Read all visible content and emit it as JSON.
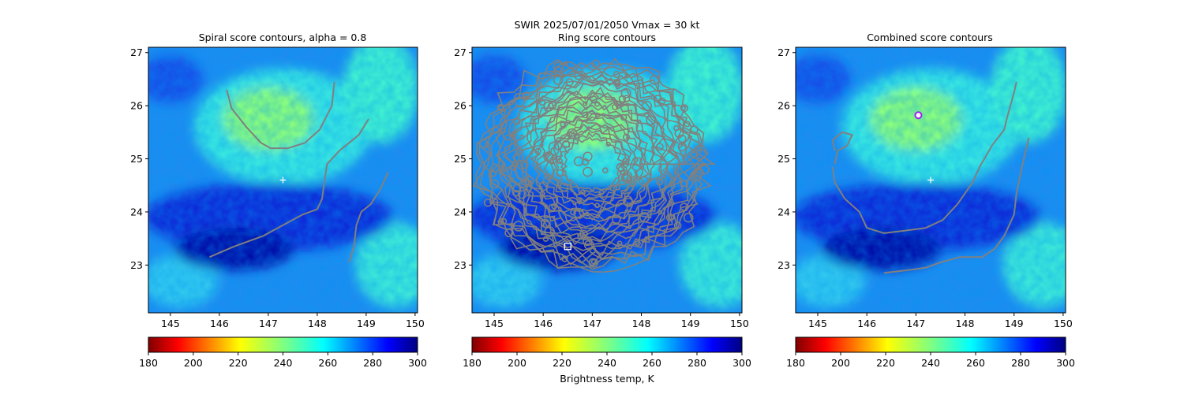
{
  "figure": {
    "suptitle_line1": "SWIR  2025/07/01/2050    Vmax = 30 kt",
    "colorbar_label": "Brightness temp, K"
  },
  "chart_data": [
    {
      "type": "heatmap",
      "title": "Spiral score contours, alpha =  0.8",
      "xlabel": "",
      "ylabel": "",
      "xlim": [
        144.55,
        150.05
      ],
      "ylim": [
        22.1,
        27.1
      ],
      "xticks": [
        145,
        146,
        147,
        148,
        149,
        150
      ],
      "yticks": [
        23,
        24,
        25,
        26,
        27
      ],
      "colorbar": {
        "ticks": [
          180,
          200,
          220,
          240,
          260,
          280,
          300
        ],
        "range": [
          180,
          300
        ],
        "colormap": "jet_r"
      },
      "markers": [
        {
          "kind": "plus",
          "color": "#ffffff",
          "lon": 147.3,
          "lat": 24.6
        }
      ],
      "contours": [
        {
          "color": "#808080",
          "points": [
            [
              146.15,
              26.3
            ],
            [
              146.25,
              25.95
            ],
            [
              146.55,
              25.6
            ],
            [
              146.85,
              25.3
            ],
            [
              147.05,
              25.2
            ],
            [
              147.4,
              25.2
            ],
            [
              147.75,
              25.3
            ],
            [
              148.05,
              25.55
            ],
            [
              148.3,
              26.0
            ],
            [
              148.35,
              26.45
            ]
          ]
        },
        {
          "color": "#808080",
          "points": [
            [
              145.8,
              23.15
            ],
            [
              146.3,
              23.35
            ],
            [
              146.9,
              23.55
            ],
            [
              147.3,
              23.75
            ],
            [
              147.7,
              23.95
            ],
            [
              148.0,
              24.05
            ],
            [
              148.1,
              24.25
            ],
            [
              148.15,
              24.6
            ],
            [
              148.2,
              24.9
            ],
            [
              148.45,
              25.15
            ],
            [
              148.65,
              25.3
            ],
            [
              148.85,
              25.45
            ],
            [
              149.05,
              25.75
            ]
          ]
        },
        {
          "color": "#808080",
          "points": [
            [
              148.65,
              23.05
            ],
            [
              148.75,
              23.35
            ],
            [
              148.8,
              23.75
            ],
            [
              148.9,
              24.0
            ],
            [
              149.1,
              24.15
            ],
            [
              149.3,
              24.45
            ],
            [
              149.45,
              24.75
            ]
          ]
        }
      ]
    },
    {
      "type": "heatmap",
      "title": "Ring score contours",
      "xlabel": "",
      "ylabel": "",
      "xlim": [
        144.55,
        150.05
      ],
      "ylim": [
        22.1,
        27.1
      ],
      "xticks": [
        145,
        146,
        147,
        148,
        149,
        150
      ],
      "yticks": [
        23,
        24,
        25,
        26,
        27
      ],
      "colorbar": {
        "ticks": [
          180,
          200,
          220,
          240,
          260,
          280,
          300
        ],
        "range": [
          180,
          300
        ],
        "colormap": "jet_r"
      },
      "markers": [
        {
          "kind": "square",
          "color": "#ffffff",
          "lon": 146.5,
          "lat": 23.35
        }
      ],
      "contours": [
        {
          "color": "#808080",
          "kind": "ring-field",
          "center": [
            147.0,
            24.9
          ],
          "radius_deg": [
            2.3,
            1.95
          ]
        }
      ]
    },
    {
      "type": "heatmap",
      "title": "Combined score contours",
      "xlabel": "",
      "ylabel": "",
      "xlim": [
        144.55,
        150.05
      ],
      "ylim": [
        22.1,
        27.1
      ],
      "xticks": [
        145,
        146,
        147,
        148,
        149,
        150
      ],
      "yticks": [
        23,
        24,
        25,
        26,
        27
      ],
      "colorbar": {
        "ticks": [
          180,
          200,
          220,
          240,
          260,
          280,
          300
        ],
        "range": [
          180,
          300
        ],
        "colormap": "jet_r"
      },
      "markers": [
        {
          "kind": "plus",
          "color": "#ffffff",
          "lon": 147.3,
          "lat": 24.6
        },
        {
          "kind": "circle",
          "color": "#a020f0",
          "lon": 147.05,
          "lat": 25.82
        }
      ],
      "contours": [
        {
          "color": "#808080",
          "points": [
            [
              145.3,
              24.85
            ],
            [
              145.35,
              24.55
            ],
            [
              145.55,
              24.25
            ],
            [
              145.85,
              24.0
            ],
            [
              146.0,
              23.7
            ],
            [
              146.35,
              23.6
            ],
            [
              146.8,
              23.65
            ],
            [
              147.2,
              23.7
            ],
            [
              147.55,
              23.85
            ],
            [
              147.85,
              24.15
            ],
            [
              148.15,
              24.55
            ],
            [
              148.3,
              24.85
            ],
            [
              148.55,
              25.25
            ],
            [
              148.8,
              25.55
            ],
            [
              148.85,
              25.75
            ],
            [
              149.0,
              26.25
            ],
            [
              149.05,
              26.45
            ]
          ]
        },
        {
          "color": "#808080",
          "points": [
            [
              145.35,
              24.9
            ],
            [
              145.4,
              25.15
            ],
            [
              145.6,
              25.25
            ],
            [
              145.7,
              25.45
            ],
            [
              145.5,
              25.5
            ],
            [
              145.3,
              25.35
            ],
            [
              145.35,
              25.15
            ]
          ]
        },
        {
          "color": "#808080",
          "points": [
            [
              146.35,
              22.85
            ],
            [
              146.8,
              22.9
            ],
            [
              147.2,
              22.95
            ],
            [
              147.5,
              23.05
            ],
            [
              147.9,
              23.15
            ],
            [
              148.35,
              23.15
            ],
            [
              148.6,
              23.3
            ],
            [
              148.8,
              23.55
            ],
            [
              149.0,
              23.95
            ],
            [
              149.05,
              24.35
            ],
            [
              149.15,
              24.8
            ],
            [
              149.3,
              25.4
            ]
          ]
        }
      ]
    }
  ]
}
